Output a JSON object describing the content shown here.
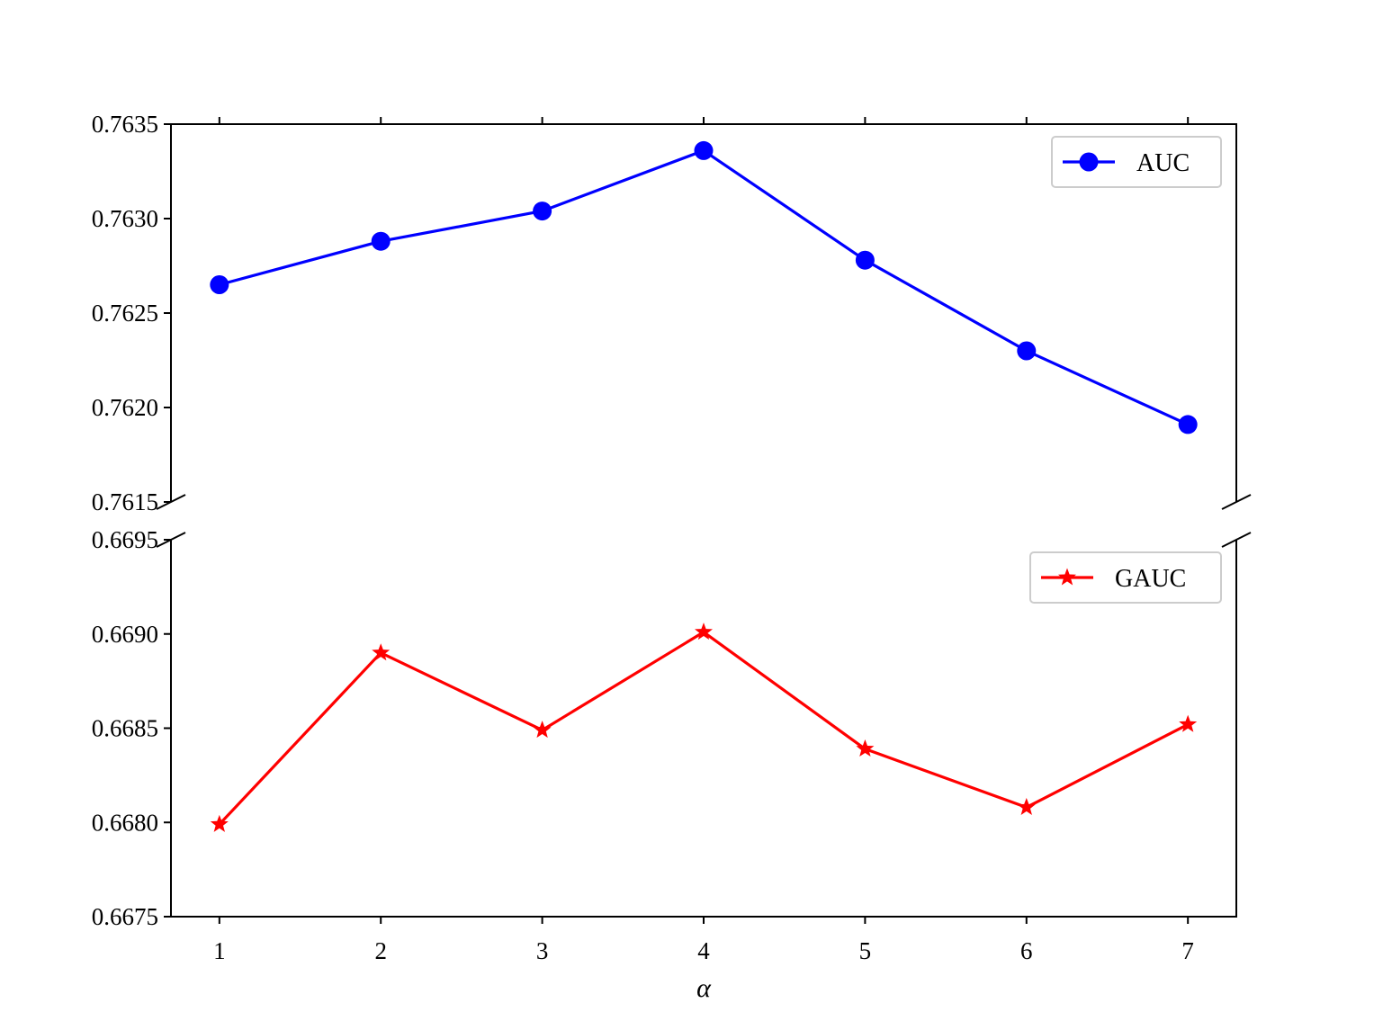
{
  "chart_data": {
    "type": "line",
    "broken_axis": true,
    "x": [
      1,
      2,
      3,
      4,
      5,
      6,
      7
    ],
    "xlabel": "α",
    "xticks": [
      "1",
      "2",
      "3",
      "4",
      "5",
      "6",
      "7"
    ],
    "xlim": [
      0.7,
      7.3
    ],
    "panels": [
      {
        "ylim": [
          0.7615,
          0.7635
        ],
        "yticks": [
          "0.7615",
          "0.7620",
          "0.7625",
          "0.7630",
          "0.7635"
        ],
        "legend": "upper right",
        "series": [
          {
            "name": "AUC",
            "color": "#0000ff",
            "marker": "circle",
            "values": [
              0.76265,
              0.76288,
              0.76304,
              0.76336,
              0.76278,
              0.7623,
              0.76191
            ]
          }
        ]
      },
      {
        "ylim": [
          0.6675,
          0.6695
        ],
        "yticks": [
          "0.6675",
          "0.6680",
          "0.6685",
          "0.6690",
          "0.6695"
        ],
        "legend": "upper right",
        "series": [
          {
            "name": "GAUC",
            "color": "#ff0000",
            "marker": "star",
            "values": [
              0.66799,
              0.6689,
              0.66849,
              0.66901,
              0.66839,
              0.66808,
              0.66852
            ]
          }
        ]
      }
    ]
  }
}
